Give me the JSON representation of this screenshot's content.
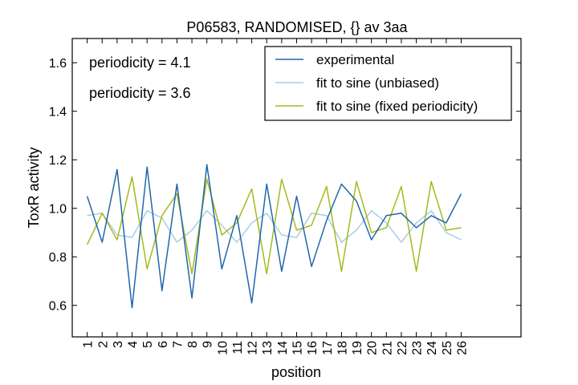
{
  "chart_data": {
    "type": "line",
    "title": "P06583, RANDOMISED, {} av 3aa",
    "xlabel": "position",
    "ylabel": "ToxR activity",
    "xlim": [
      0,
      30
    ],
    "ylim": [
      0.47,
      1.7
    ],
    "yticks": [
      0.6,
      0.8,
      1.0,
      1.2,
      1.4,
      1.6
    ],
    "ytick_labels": [
      "0.6",
      "0.8",
      "1.0",
      "1.2",
      "1.4",
      "1.6"
    ],
    "xtick_labels": [
      "1",
      "2",
      "3",
      "4",
      "5",
      "6",
      "7",
      "8",
      "9",
      "10",
      "11",
      "12",
      "13",
      "14",
      "15",
      "16",
      "17",
      "18",
      "19",
      "20",
      "21",
      "22",
      "23",
      "24",
      "25",
      "26"
    ],
    "grid": false,
    "legend_position": "top-right",
    "annotations": [
      {
        "text": "periodicity = 4.1",
        "color": "#a6cee3"
      },
      {
        "text": "periodicity = 3.6",
        "color": "#a6b91a"
      }
    ],
    "series": [
      {
        "name": "experimental",
        "color": "#2166ac",
        "x": [
          1,
          2,
          3,
          4,
          5,
          6,
          7,
          8,
          9,
          10,
          11,
          12,
          13,
          14,
          15,
          16,
          17,
          18,
          19,
          20,
          21,
          22,
          23,
          24,
          25,
          26
        ],
        "values": [
          1.05,
          0.86,
          1.16,
          0.59,
          1.17,
          0.66,
          1.1,
          0.63,
          1.18,
          0.75,
          0.97,
          0.61,
          1.1,
          0.74,
          1.05,
          0.76,
          0.95,
          1.1,
          1.03,
          0.87,
          0.97,
          0.98,
          0.92,
          0.97,
          0.94,
          1.06
        ]
      },
      {
        "name": "fit to sine (unbiased)",
        "color": "#a6cee3",
        "x": [
          1,
          2,
          3,
          4,
          5,
          6,
          7,
          8,
          9,
          10,
          11,
          12,
          13,
          14,
          15,
          16,
          17,
          18,
          19,
          20,
          21,
          22,
          23,
          24,
          25,
          26
        ],
        "values": [
          0.97,
          0.98,
          0.89,
          0.88,
          0.99,
          0.96,
          0.86,
          0.91,
          0.99,
          0.93,
          0.86,
          0.94,
          0.98,
          0.89,
          0.88,
          0.98,
          0.97,
          0.86,
          0.91,
          0.99,
          0.94,
          0.86,
          0.94,
          0.99,
          0.9,
          0.87
        ]
      },
      {
        "name": "fit to sine (fixed periodicity)",
        "color": "#a6b91a",
        "x": [
          1,
          2,
          3,
          4,
          5,
          6,
          7,
          8,
          9,
          10,
          11,
          12,
          13,
          14,
          15,
          16,
          17,
          18,
          19,
          20,
          21,
          22,
          23,
          24,
          25,
          26
        ],
        "values": [
          0.85,
          0.98,
          0.87,
          1.13,
          0.75,
          0.97,
          1.06,
          0.73,
          1.12,
          0.89,
          0.94,
          1.08,
          0.73,
          1.12,
          0.91,
          0.93,
          1.09,
          0.74,
          1.11,
          0.9,
          0.92,
          1.09,
          0.74,
          1.11,
          0.91,
          0.92
        ]
      }
    ]
  }
}
